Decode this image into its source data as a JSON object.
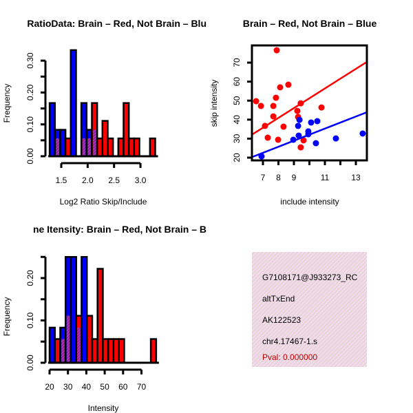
{
  "colors": {
    "red": "#ff0000",
    "blue": "#0000ff",
    "overlap": "#9020a0",
    "pval": "#c00000",
    "panel_bg": "#f8d8f0"
  },
  "chart_data": [
    {
      "type": "bar",
      "title": "RatioData: Brain – Red, Not Brain – Blu",
      "xlabel": "Log2 Ratio Skip/Include",
      "ylabel": "Frequency",
      "bin_start": 1.28,
      "bin_width": 0.1,
      "x_ticks": [
        "1.5",
        "2.0",
        "2.5",
        "3.0"
      ],
      "x_tick_values": [
        1.5,
        2.0,
        2.5,
        3.0
      ],
      "y_ticks": [
        "0.00",
        "0.10",
        "0.20",
        "0.30"
      ],
      "y_tick_values": [
        0,
        0.1,
        0.2,
        0.3
      ],
      "ylim": [
        0,
        0.3
      ],
      "series": [
        {
          "name": "Not Brain",
          "color": "blue",
          "values": [
            0.167,
            0.083,
            0.083,
            0,
            0.333,
            0,
            0.167,
            0.083,
            0.083,
            0,
            0,
            0,
            0,
            0,
            0,
            0,
            0,
            0,
            0,
            0
          ]
        },
        {
          "name": "Brain",
          "color": "red",
          "values": [
            0,
            0.056,
            0,
            0.056,
            0,
            0,
            0.056,
            0.056,
            0.167,
            0.056,
            0.111,
            0.056,
            0,
            0.056,
            0.167,
            0.056,
            0.056,
            0,
            0,
            0.056
          ]
        }
      ]
    },
    {
      "type": "scatter",
      "title": "Brain – Red, Not Brain – Blue",
      "xlabel": "include intensity",
      "ylabel": "skip intensity",
      "x_ticks": [
        "7",
        "8",
        "9",
        "11",
        "13"
      ],
      "x_tick_values": [
        7,
        8,
        9,
        11,
        13
      ],
      "x_minor_ticks": [
        10,
        12
      ],
      "y_ticks": [
        "20",
        "30",
        "40",
        "50",
        "60",
        "70"
      ],
      "y_tick_values": [
        20,
        30,
        40,
        50,
        60,
        70
      ],
      "xlim": [
        6.3,
        13.7
      ],
      "ylim": [
        18.6,
        79
      ],
      "series": [
        {
          "name": "Brain",
          "color": "red",
          "points": [
            [
              6.56,
              49.7
            ],
            [
              6.87,
              47.2
            ],
            [
              7.89,
              76.5
            ],
            [
              8.11,
              57.0
            ],
            [
              8.64,
              58.4
            ],
            [
              7.84,
              51.5
            ],
            [
              7.67,
              47.2
            ],
            [
              7.67,
              41.7
            ],
            [
              7.13,
              36.7
            ],
            [
              7.31,
              30.5
            ],
            [
              7.98,
              29.4
            ],
            [
              8.33,
              36.3
            ],
            [
              9.22,
              44.6
            ],
            [
              9.27,
              41.4
            ],
            [
              9.44,
              48.6
            ],
            [
              9.62,
              29.1
            ],
            [
              9.44,
              25.4
            ],
            [
              10.78,
              46.4
            ]
          ],
          "fit": [
            [
              6.33,
              32.3
            ],
            [
              13.71,
              70.4
            ]
          ]
        },
        {
          "name": "Not Brain",
          "color": "blue",
          "points": [
            [
              6.91,
              20.7
            ],
            [
              8.96,
              29.4
            ],
            [
              9.27,
              36.7
            ],
            [
              9.36,
              39.9
            ],
            [
              9.31,
              31.6
            ],
            [
              9.93,
              33.8
            ],
            [
              9.93,
              32.3
            ],
            [
              10.11,
              38.5
            ],
            [
              10.51,
              39.2
            ],
            [
              10.42,
              27.6
            ],
            [
              11.71,
              30.1
            ],
            [
              13.44,
              32.7
            ]
          ],
          "fit": [
            [
              6.33,
              20.4
            ],
            [
              13.71,
              43.9
            ]
          ]
        }
      ]
    },
    {
      "type": "bar",
      "title": "ne Itensity: Brain – Red, Not Brain – B",
      "xlabel": "Intensity",
      "ylabel": "Frequency",
      "bin_start": 20,
      "bin_width": 2.9,
      "x_ticks": [
        "20",
        "30",
        "40",
        "50",
        "60",
        "70"
      ],
      "x_tick_values": [
        20,
        30,
        40,
        50,
        60,
        70
      ],
      "y_ticks": [
        "0.00",
        "0.10",
        "0.20"
      ],
      "y_tick_values": [
        0,
        0.1,
        0.2
      ],
      "ylim": [
        0,
        0.25
      ],
      "series": [
        {
          "name": "Not Brain",
          "color": "blue",
          "values": [
            0.083,
            0,
            0.083,
            0.25,
            0.25,
            0.083,
            0.25,
            0,
            0,
            0,
            0,
            0,
            0,
            0,
            0,
            0,
            0,
            0,
            0,
            0
          ]
        },
        {
          "name": "Brain",
          "color": "red",
          "values": [
            0,
            0.056,
            0.056,
            0.111,
            0,
            0.111,
            0,
            0.111,
            0.056,
            0.222,
            0.056,
            0.056,
            0.056,
            0.056,
            0,
            0,
            0,
            0,
            0,
            0.056
          ]
        }
      ]
    }
  ],
  "info_panel": {
    "lines": [
      "G7108171@J933273_RC",
      "altTxEnd",
      "AK122523",
      "chr4.17467-1.s"
    ],
    "pval": "Pval: 0.000000"
  }
}
